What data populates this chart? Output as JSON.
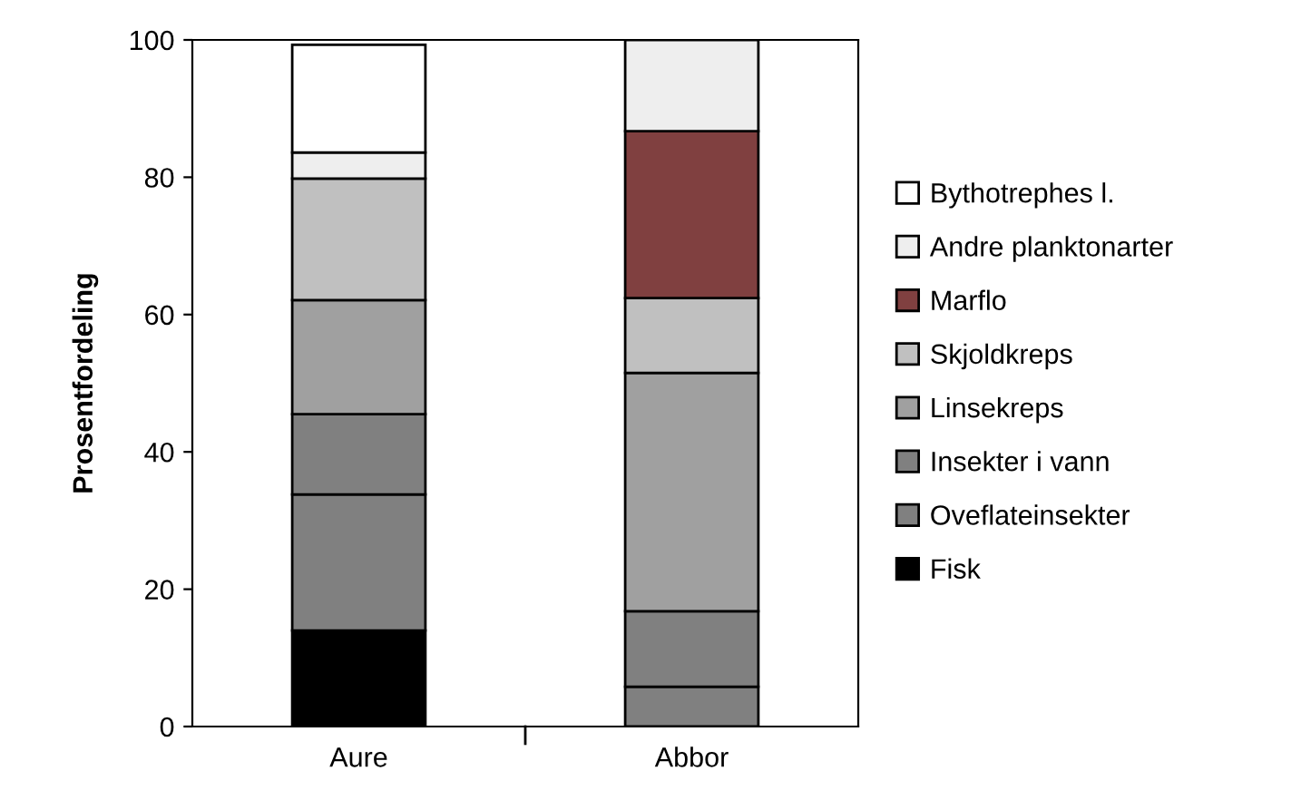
{
  "chart_data": {
    "type": "bar",
    "stacked": true,
    "ylabel": "Prosentfordeling",
    "categories": [
      "Aure",
      "Abbor"
    ],
    "ylim": [
      0,
      100
    ],
    "yticks": [
      0,
      20,
      40,
      60,
      80,
      100
    ],
    "grid": false,
    "legend": "right",
    "series": [
      {
        "name": "Fisk",
        "color": "#000000",
        "values": [
          14.0,
          0
        ]
      },
      {
        "name": "Oveflateinsekter",
        "color": "#808080",
        "values": [
          19.8,
          5.8
        ]
      },
      {
        "name": "Insekter i vann",
        "color": "#808080",
        "values": [
          11.7,
          11.0
        ]
      },
      {
        "name": "Linsekreps",
        "color": "#a0a0a0",
        "values": [
          16.6,
          34.7
        ]
      },
      {
        "name": "Skjoldkreps",
        "color": "#c0c0c0",
        "values": [
          17.7,
          10.9
        ]
      },
      {
        "name": "Marflo",
        "color": "#804040",
        "values": [
          0,
          24.3
        ]
      },
      {
        "name": "Andre planktonarter",
        "color": "#eeeeee",
        "values": [
          3.8,
          13.3
        ]
      },
      {
        "name": "Bythotrephes l.",
        "color": "#ffffff",
        "values": [
          15.7,
          0
        ]
      }
    ]
  }
}
